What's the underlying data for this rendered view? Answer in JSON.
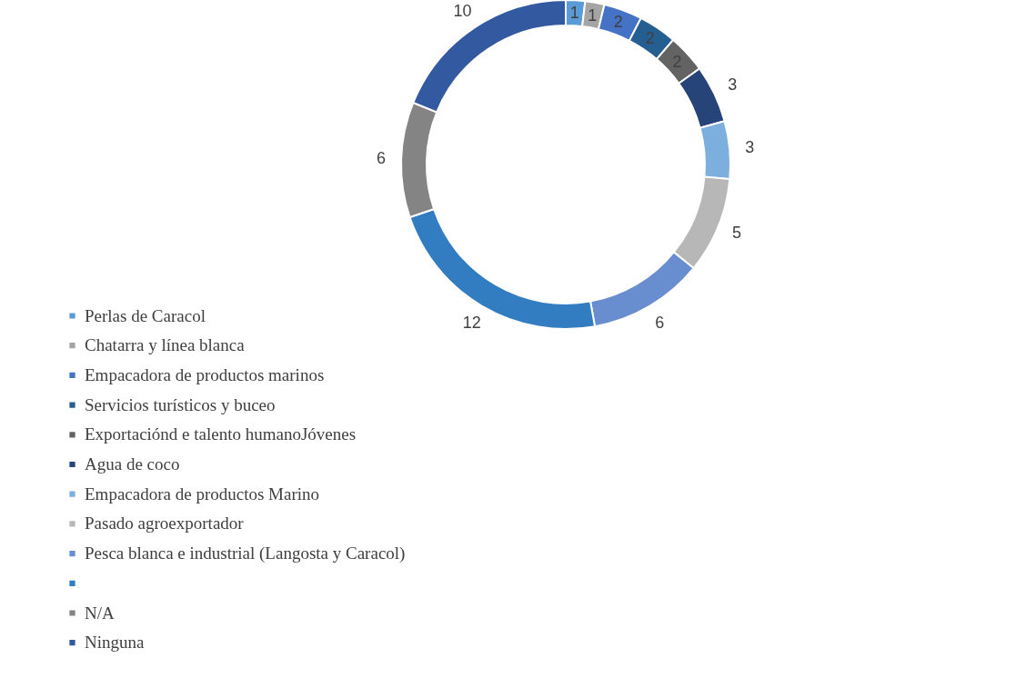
{
  "chart_data": {
    "type": "donut",
    "categories": [
      "Perlas de Caracol",
      "Chatarra y línea blanca",
      "Empacadora de productos marinos",
      "Servicios turísticos y buceo",
      "Exportaciónd e talento humanoJóvenes",
      "Agua de coco",
      "Empacadora de productos Marino",
      "Pasado agroexportador",
      "Pesca blanca e industrial (Langosta y Caracol)",
      null,
      "N/A",
      "Ninguna"
    ],
    "values": [
      1,
      1,
      2,
      2,
      2,
      3,
      3,
      5,
      6,
      12,
      6,
      10
    ],
    "colors": [
      "#5b9bd5",
      "#a5a5a5",
      "#4472c4",
      "#255e91",
      "#636363",
      "#264478",
      "#7cafdd",
      "#b7b7b7",
      "#698ed0",
      "#327dc2",
      "#848484",
      "#335aa1"
    ],
    "data_labels": true,
    "legend": "bottom left"
  }
}
